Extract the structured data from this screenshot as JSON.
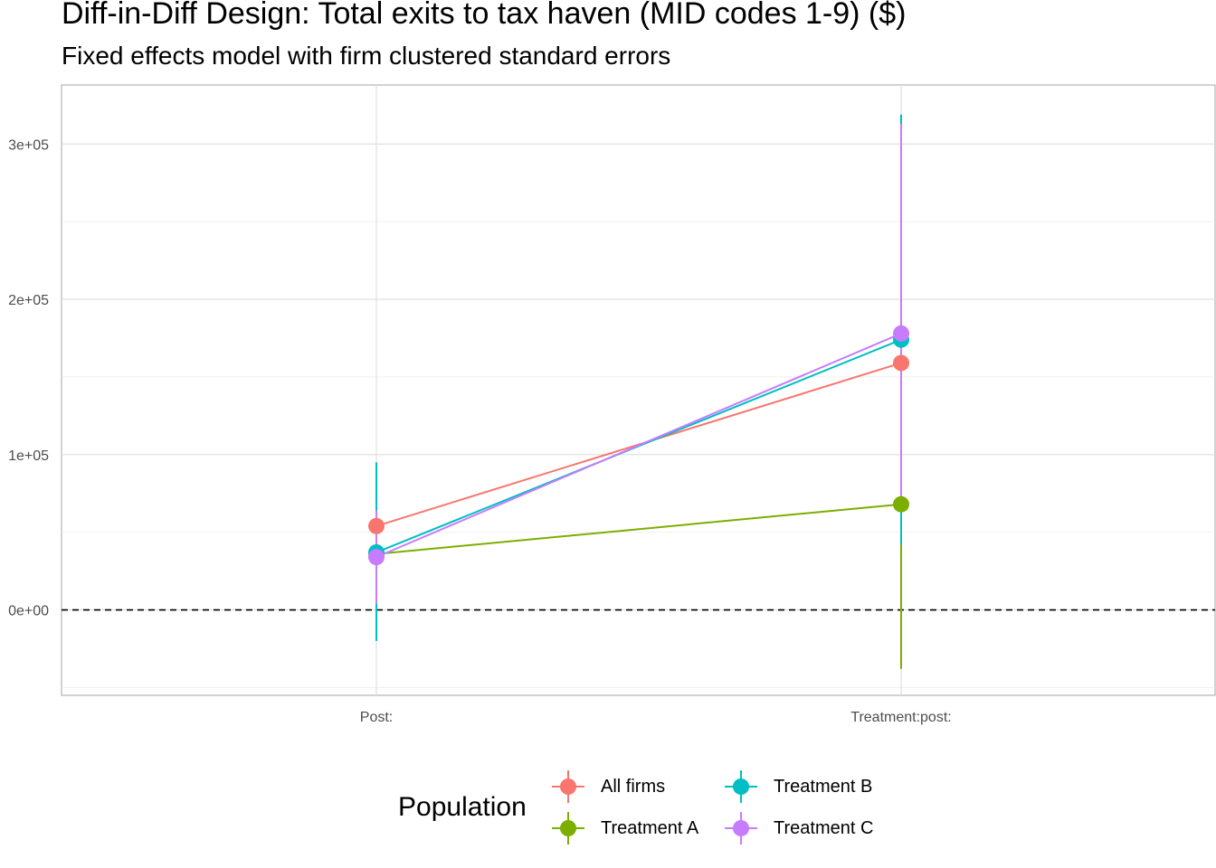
{
  "chart_data": {
    "type": "line",
    "title": "Diff-in-Diff Design: Total exits to tax haven (MID codes 1-9)  ($)",
    "subtitle": "Fixed effects model with firm clustered standard errors",
    "categories": [
      "Post:",
      "Treatment:post:"
    ],
    "y_ticks": [
      0,
      100000,
      200000,
      300000
    ],
    "y_tick_labels": [
      "0e+00",
      "1e+05",
      "2e+05",
      "3e+05"
    ],
    "ylim": [
      -55000,
      338000
    ],
    "grid": true,
    "reference_line": {
      "y": 0,
      "style": "dashed"
    },
    "legend": {
      "title": "Population",
      "position": "bottom"
    },
    "series": [
      {
        "name": "All firms",
        "color": "#F8766D",
        "values": [
          54000,
          159000
        ],
        "lower": [
          54000,
          159000
        ],
        "upper": [
          54000,
          159000
        ]
      },
      {
        "name": "Treatment A",
        "color": "#7CAE00",
        "values": [
          36000,
          68000
        ],
        "lower": [
          36000,
          -38000
        ],
        "upper": [
          36000,
          68000
        ]
      },
      {
        "name": "Treatment B",
        "color": "#00BFC4",
        "values": [
          37000,
          174000
        ],
        "lower": [
          -20000,
          42000
        ],
        "upper": [
          95000,
          319000
        ]
      },
      {
        "name": "Treatment C",
        "color": "#C77CFF",
        "values": [
          34000,
          178000
        ],
        "lower": [
          4000,
          68000
        ],
        "upper": [
          64000,
          313000
        ]
      }
    ]
  }
}
